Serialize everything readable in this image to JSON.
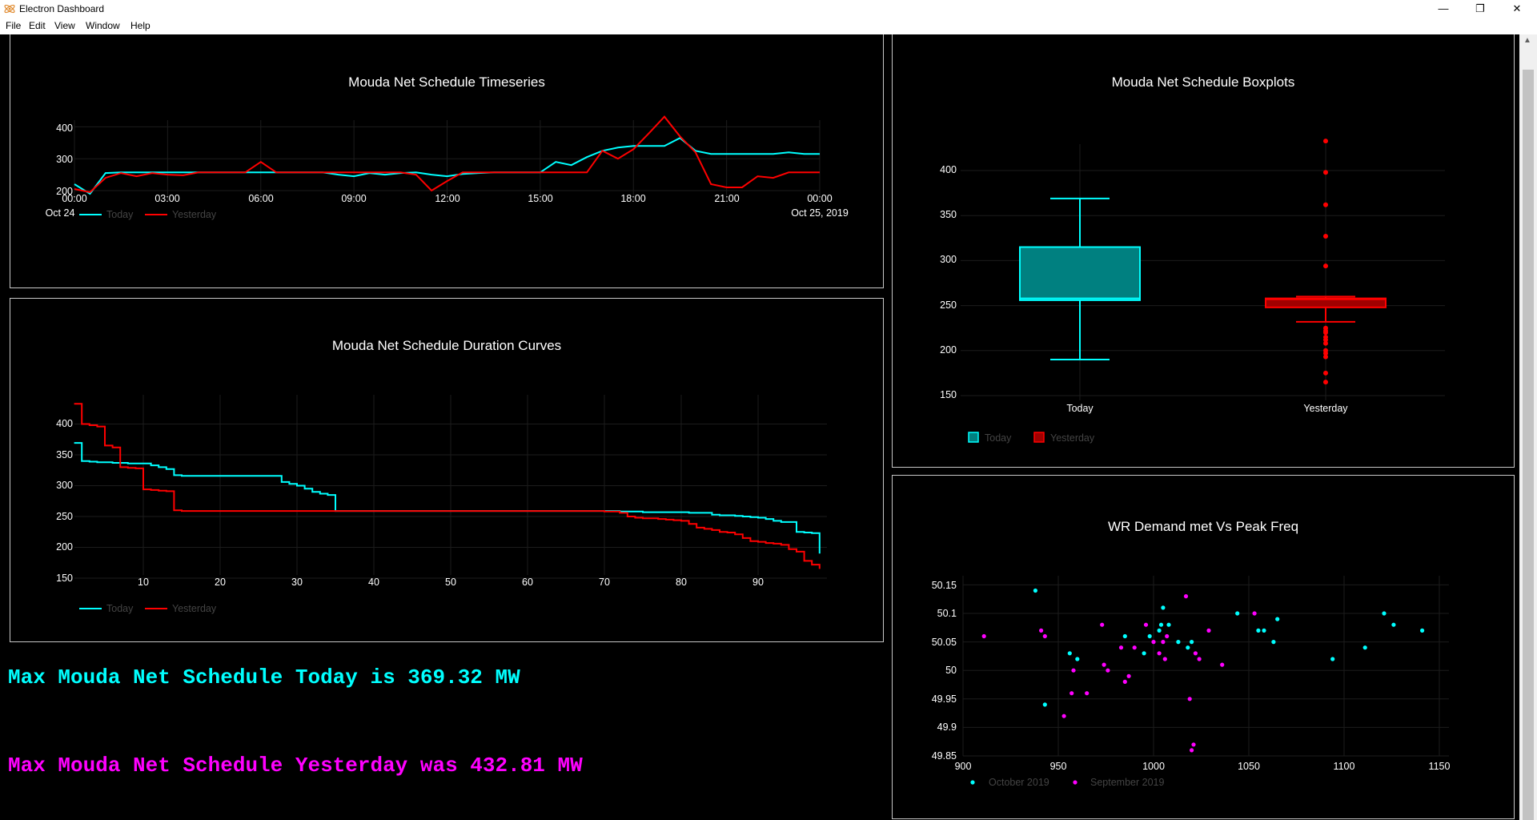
{
  "window": {
    "title": "Electron Dashboard",
    "controls": {
      "minimize": "—",
      "restore": "❐",
      "close": "✕"
    }
  },
  "menu": [
    "File",
    "Edit",
    "View",
    "Window",
    "Help"
  ],
  "colors": {
    "today": "#00ffff",
    "yesterday": "#ff0000",
    "september": "#ff00ff",
    "background": "#000000"
  },
  "panels": {
    "timeseries": {
      "title": "Mouda Net Schedule Timeseries",
      "xticks": [
        "00:00",
        "03:00",
        "06:00",
        "09:00",
        "12:00",
        "15:00",
        "18:00",
        "21:00",
        "00:00"
      ],
      "xtick_left_sub": "Oct 24",
      "xtick_right_sub": "Oct 25, 2019",
      "yticks": [
        "200",
        "300",
        "400"
      ],
      "legend": [
        "Today",
        "Yesterday"
      ]
    },
    "duration": {
      "title": "Mouda Net Schedule Duration Curves",
      "xticks": [
        "10",
        "20",
        "30",
        "40",
        "50",
        "60",
        "70",
        "80",
        "90"
      ],
      "yticks": [
        "150",
        "200",
        "250",
        "300",
        "350",
        "400"
      ],
      "legend": [
        "Today",
        "Yesterday"
      ]
    },
    "boxplot": {
      "title": "Mouda Net Schedule Boxplots",
      "categories": [
        "Today",
        "Yesterday"
      ],
      "yticks": [
        "150",
        "200",
        "250",
        "300",
        "350",
        "400"
      ],
      "legend": [
        "Today",
        "Yesterday"
      ]
    },
    "scatter": {
      "title": "WR Demand met Vs Peak Freq",
      "xticks": [
        "900",
        "950",
        "1000",
        "1050",
        "1100",
        "1150"
      ],
      "yticks": [
        "49.85",
        "49.9",
        "49.95",
        "50",
        "50.05",
        "50.1",
        "50.15"
      ],
      "legend": [
        "October 2019",
        "September 2019"
      ]
    }
  },
  "max_today": "Max Mouda Net Schedule Today is 369.32 MW",
  "max_yesterday": "Max Mouda Net Schedule Yesterday was 432.81 MW",
  "chart_data": [
    {
      "type": "line",
      "title": "Mouda Net Schedule Timeseries",
      "x_hours": [
        0,
        0.5,
        1,
        1.5,
        2,
        2.5,
        3,
        3.5,
        4,
        4.5,
        5,
        5.5,
        6,
        6.5,
        7,
        7.5,
        8,
        8.5,
        9,
        9.5,
        10,
        10.5,
        11,
        11.5,
        12,
        12.5,
        13,
        13.5,
        14,
        14.5,
        15,
        15.5,
        16,
        16.5,
        17,
        17.5,
        18,
        18.5,
        19,
        19.5,
        20,
        20.5,
        21,
        21.5,
        22,
        22.5,
        23,
        23.5,
        24
      ],
      "ylim": [
        170,
        440
      ],
      "series": [
        {
          "name": "Today",
          "values": [
            220,
            190,
            255,
            257,
            257,
            257,
            257,
            257,
            257,
            257,
            257,
            257,
            257,
            257,
            257,
            257,
            257,
            250,
            245,
            255,
            250,
            255,
            257,
            250,
            245,
            252,
            255,
            257,
            257,
            257,
            257,
            290,
            280,
            305,
            325,
            335,
            340,
            340,
            340,
            365,
            325,
            315,
            315,
            315,
            315,
            315,
            320,
            315,
            315
          ]
        },
        {
          "name": "Yesterday",
          "values": [
            205,
            195,
            240,
            255,
            245,
            255,
            250,
            248,
            257,
            257,
            257,
            257,
            290,
            257,
            257,
            257,
            257,
            257,
            257,
            257,
            257,
            257,
            250,
            200,
            230,
            257,
            257,
            257,
            257,
            257,
            257,
            257,
            257,
            257,
            325,
            300,
            330,
            380,
            432,
            370,
            320,
            220,
            210,
            210,
            245,
            240,
            257,
            257,
            257
          ]
        }
      ]
    },
    {
      "type": "line",
      "title": "Mouda Net Schedule Duration Curves",
      "x": "rank 1-98",
      "ylim": [
        130,
        440
      ],
      "series": [
        {
          "name": "Today",
          "values": [
            369.32,
            340,
            339,
            338,
            338,
            337,
            337,
            336,
            336,
            336,
            333,
            330,
            327,
            317,
            316,
            316,
            316,
            316,
            316,
            316,
            316,
            316,
            316,
            316,
            316,
            316,
            316,
            306,
            303,
            300,
            295,
            290,
            287,
            285,
            259,
            259,
            259,
            259,
            259,
            259,
            259,
            259,
            259,
            259,
            259,
            259,
            259,
            259,
            259,
            259,
            259,
            259,
            259,
            259,
            259,
            259,
            259,
            259,
            259,
            259,
            259,
            259,
            259,
            259,
            259,
            259,
            259,
            259,
            259,
            259,
            259,
            258,
            258,
            258,
            257,
            257,
            257,
            257,
            257,
            257,
            256,
            256,
            256,
            253,
            252,
            252,
            251,
            250,
            249,
            248,
            246,
            243,
            241,
            241,
            225,
            224,
            223,
            190
          ]
        },
        {
          "name": "Yesterday",
          "values": [
            432.81,
            400,
            398,
            396,
            365,
            362,
            330,
            329,
            328,
            294,
            293,
            292,
            291,
            260,
            259,
            259,
            259,
            259,
            259,
            259,
            259,
            259,
            259,
            259,
            259,
            259,
            259,
            259,
            259,
            259,
            259,
            259,
            259,
            259,
            259,
            259,
            259,
            259,
            259,
            259,
            259,
            259,
            259,
            259,
            259,
            259,
            259,
            259,
            259,
            259,
            259,
            259,
            259,
            259,
            259,
            259,
            259,
            259,
            259,
            259,
            259,
            259,
            259,
            259,
            259,
            259,
            259,
            259,
            259,
            258,
            258,
            256,
            250,
            248,
            247,
            247,
            246,
            245,
            244,
            243,
            238,
            232,
            230,
            228,
            225,
            224,
            221,
            215,
            210,
            209,
            207,
            206,
            204,
            197,
            193,
            178,
            172,
            165
          ]
        }
      ]
    },
    {
      "type": "box",
      "title": "Mouda Net Schedule Boxplots",
      "ylim": [
        140,
        440
      ],
      "boxes": [
        {
          "name": "Today",
          "lowerfence": 190,
          "q1": 256,
          "median": 258,
          "q3": 315,
          "upperfence": 369,
          "outliers": []
        },
        {
          "name": "Yesterday",
          "lowerfence": 232,
          "q1": 248,
          "median": 257,
          "q3": 258,
          "upperfence": 260,
          "outliers": [
            432.8,
            398,
            362,
            327,
            294,
            225,
            222,
            220,
            215,
            212,
            208,
            200,
            197,
            193,
            175,
            165
          ]
        }
      ]
    },
    {
      "type": "scatter",
      "title": "WR Demand met Vs Peak Freq",
      "xlim": [
        900,
        1150
      ],
      "ylim": [
        49.85,
        50.15
      ],
      "series": [
        {
          "name": "October 2019",
          "points": [
            [
              938,
              50.14
            ],
            [
              943,
              49.94
            ],
            [
              956,
              50.03
            ],
            [
              960,
              50.02
            ],
            [
              985,
              50.06
            ],
            [
              995,
              50.03
            ],
            [
              998,
              50.06
            ],
            [
              1003,
              50.07
            ],
            [
              1004,
              50.08
            ],
            [
              1005,
              50.11
            ],
            [
              1008,
              50.08
            ],
            [
              1013,
              50.05
            ],
            [
              1018,
              50.04
            ],
            [
              1020,
              50.05
            ],
            [
              1044,
              50.1
            ],
            [
              1055,
              50.07
            ],
            [
              1058,
              50.07
            ],
            [
              1063,
              50.05
            ],
            [
              1065,
              50.09
            ],
            [
              1094,
              50.02
            ],
            [
              1111,
              50.04
            ],
            [
              1121,
              50.1
            ],
            [
              1126,
              50.08
            ],
            [
              1141,
              50.07
            ]
          ]
        },
        {
          "name": "September 2019",
          "points": [
            [
              911,
              50.06
            ],
            [
              941,
              50.07
            ],
            [
              943,
              50.06
            ],
            [
              953,
              49.92
            ],
            [
              957,
              49.96
            ],
            [
              958,
              50.0
            ],
            [
              965,
              49.96
            ],
            [
              973,
              50.08
            ],
            [
              974,
              50.01
            ],
            [
              976,
              50.0
            ],
            [
              983,
              50.04
            ],
            [
              985,
              49.98
            ],
            [
              987,
              49.99
            ],
            [
              990,
              50.04
            ],
            [
              996,
              50.08
            ],
            [
              1000,
              50.05
            ],
            [
              1003,
              50.03
            ],
            [
              1005,
              50.05
            ],
            [
              1006,
              50.02
            ],
            [
              1007,
              50.06
            ],
            [
              1017,
              50.13
            ],
            [
              1019,
              49.95
            ],
            [
              1020,
              49.86
            ],
            [
              1021,
              49.87
            ],
            [
              1022,
              50.03
            ],
            [
              1024,
              50.02
            ],
            [
              1029,
              50.07
            ],
            [
              1036,
              50.01
            ],
            [
              1053,
              50.1
            ]
          ]
        }
      ]
    }
  ]
}
